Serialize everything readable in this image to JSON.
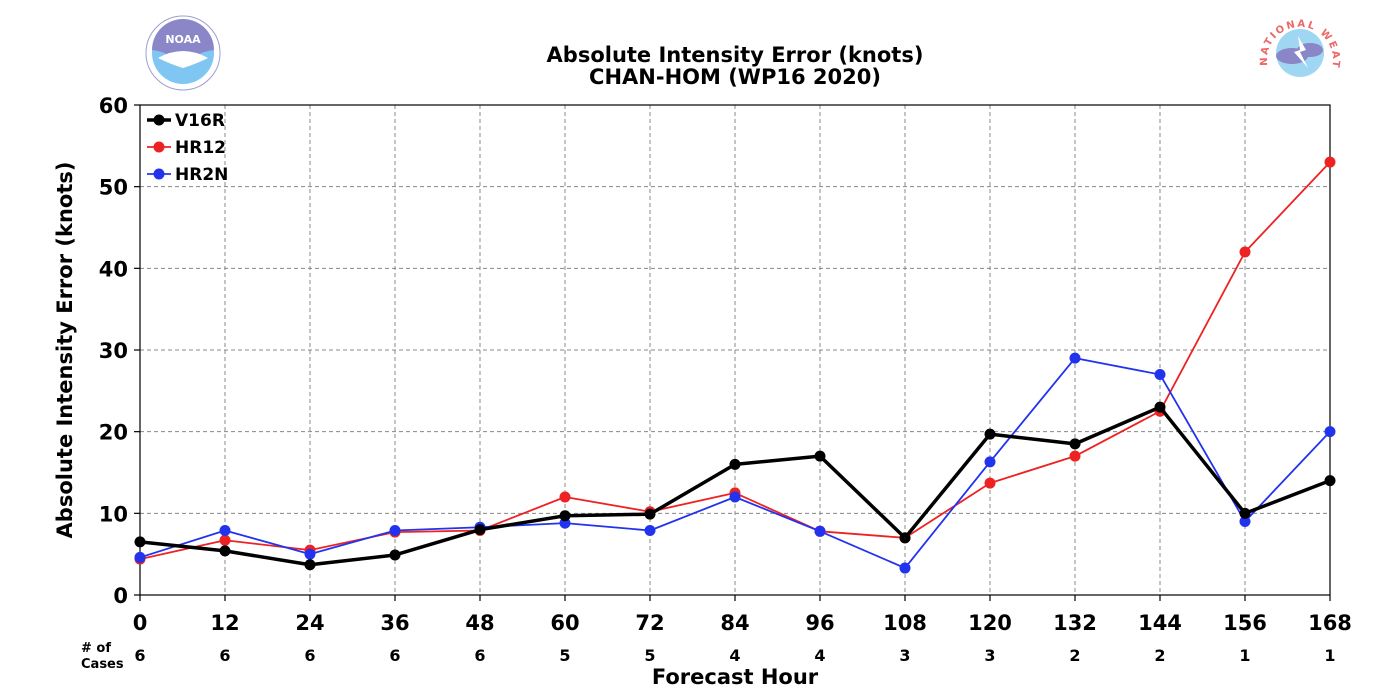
{
  "chart_data": {
    "type": "line",
    "title": "Absolute Intensity Error (knots)",
    "subtitle": "CHAN-HOM (WP16 2020)",
    "xlabel": "Forecast Hour",
    "ylabel": "Absolute Intensity Error (knots)",
    "x": [
      0,
      12,
      24,
      36,
      48,
      60,
      72,
      84,
      96,
      108,
      120,
      132,
      144,
      156,
      168
    ],
    "xlim": [
      0,
      168
    ],
    "ylim": [
      0,
      60
    ],
    "yticks": [
      0,
      10,
      20,
      30,
      40,
      50,
      60
    ],
    "grid": true,
    "legend_position": "top-left",
    "cases_label_line1": "# of",
    "cases_label_line2": "Cases",
    "cases": [
      6,
      6,
      6,
      6,
      6,
      5,
      5,
      4,
      4,
      3,
      3,
      2,
      2,
      1,
      1
    ],
    "series": [
      {
        "name": "V16R",
        "color": "#000000",
        "values": [
          6.5,
          5.4,
          3.7,
          4.9,
          8.0,
          9.7,
          9.9,
          16.0,
          17.0,
          7.0,
          19.7,
          18.5,
          23.0,
          10.0,
          14.0
        ]
      },
      {
        "name": "HR12",
        "color": "#ee2222",
        "values": [
          4.4,
          6.7,
          5.5,
          7.7,
          7.9,
          12.0,
          10.2,
          12.5,
          7.8,
          7.0,
          13.7,
          17.0,
          22.5,
          42.0,
          53.0
        ]
      },
      {
        "name": "HR2N",
        "color": "#2233ee",
        "values": [
          4.6,
          7.9,
          5.0,
          7.9,
          8.3,
          8.8,
          7.9,
          12.0,
          7.8,
          3.3,
          16.3,
          29.0,
          27.0,
          9.0,
          20.0
        ]
      }
    ]
  },
  "logos": {
    "left_text": "NOAA",
    "right_text": "NATIONAL WEATHER SERVICE"
  }
}
